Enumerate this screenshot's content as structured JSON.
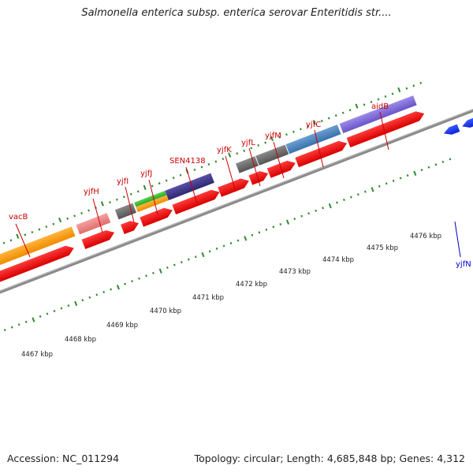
{
  "title": "Salmonella enterica subsp. enterica serovar Enteritidis str....",
  "footer": {
    "accession": "Accession: NC_011294",
    "stats": "Topology: circular; Length: 4,685,848 bp; Genes: 4,312"
  },
  "colors": {
    "tick": "#2d8a2d",
    "backbone": "#8a8a8a",
    "cds_forward": "#ee0a0a",
    "cds_reverse": "#0a2ee8",
    "label_forward": "#cc0000",
    "label_reverse": "#0000cc"
  },
  "scale_labels": [
    "4467 kbp",
    "4468 kbp",
    "4469 kbp",
    "4470 kbp",
    "4471 kbp",
    "4472 kbp",
    "4473 kbp",
    "4474 kbp",
    "4475 kbp",
    "4476 kbp"
  ],
  "gene_labels": {
    "vacB": "vacB",
    "yjfH": "yjfH",
    "yjfI": "yjfI",
    "yjfJ": "yjfJ",
    "SEN4138": "SEN4138",
    "yjfK": "yjfK",
    "yjfL": "yjfL",
    "yjfM": "yjfM",
    "yjfC": "yjfC",
    "aidB": "aidB",
    "yjfN": "yjfN"
  }
}
